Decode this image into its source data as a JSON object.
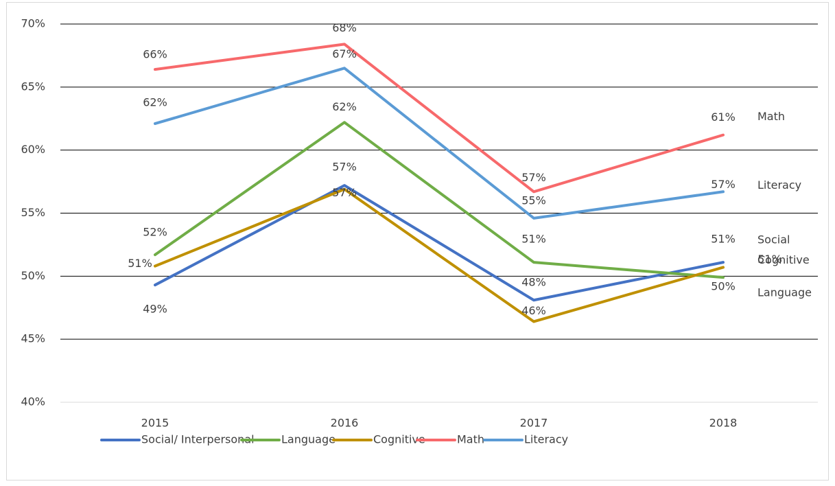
{
  "chart_data": {
    "type": "line",
    "categories": [
      "2015",
      "2016",
      "2017",
      "2018"
    ],
    "ylim": [
      40,
      70
    ],
    "yticks": [
      {
        "value": 40,
        "label": "40%"
      },
      {
        "value": 45,
        "label": "45%"
      },
      {
        "value": 50,
        "label": "50%"
      },
      {
        "value": 55,
        "label": "55%"
      },
      {
        "value": 60,
        "label": "60%"
      },
      {
        "value": 65,
        "label": "65%"
      },
      {
        "value": 70,
        "label": "70%"
      }
    ],
    "grid": true,
    "legend": "bottom",
    "series": [
      {
        "name": "Social/ Interpersonal",
        "label": "Social",
        "color": "#4472c4",
        "values": [
          49.3,
          57.2,
          48.1,
          51.1
        ],
        "value_labels": [
          "49%",
          "57%",
          "48%",
          "51%"
        ]
      },
      {
        "name": "Language",
        "label": "Language",
        "color": "#70ad47",
        "values": [
          51.7,
          62.2,
          51.1,
          49.9
        ],
        "value_labels": [
          "52%",
          "62%",
          "51%",
          "50%"
        ]
      },
      {
        "name": "Cognitive",
        "label": "Cognitive",
        "color": "#bf9000",
        "values": [
          50.8,
          56.9,
          46.4,
          50.7
        ],
        "value_labels": [
          "51%",
          "57%",
          "46%",
          "51%"
        ]
      },
      {
        "name": "Math",
        "label": "Math",
        "color": "#f7696b",
        "values": [
          66.4,
          68.4,
          56.7,
          61.2
        ],
        "value_labels": [
          "66%",
          "68%",
          "57%",
          "61%"
        ]
      },
      {
        "name": "Literacy",
        "label": "Literacy",
        "color": "#5b9bd5",
        "values": [
          62.1,
          66.5,
          54.6,
          56.7
        ],
        "value_labels": [
          "62%",
          "67%",
          "55%",
          "57%"
        ]
      }
    ]
  }
}
